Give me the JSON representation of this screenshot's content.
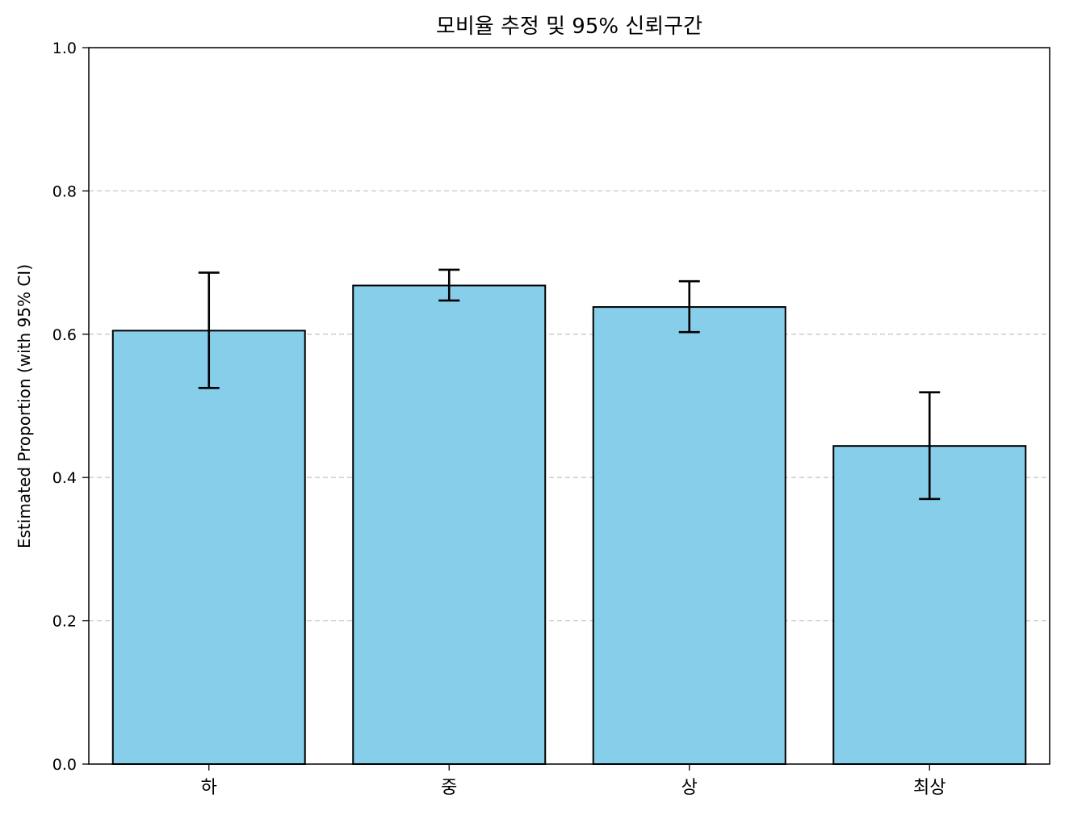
{
  "chart_data": {
    "type": "bar",
    "title": "모비율 추정 및 95% 신뢰구간",
    "xlabel": "",
    "ylabel": "Estimated Proportion (with 95% CI)",
    "categories": [
      "하",
      "중",
      "상",
      "최상"
    ],
    "values": [
      0.605,
      0.668,
      0.638,
      0.444
    ],
    "ci_lower": [
      0.525,
      0.647,
      0.603,
      0.37
    ],
    "ci_upper": [
      0.686,
      0.69,
      0.674,
      0.519
    ],
    "ylim": [
      0,
      1.0
    ],
    "yticks": [
      0.0,
      0.2,
      0.4,
      0.6,
      0.8,
      1.0
    ],
    "ytick_labels": [
      "0.0",
      "0.2",
      "0.4",
      "0.6",
      "0.8",
      "1.0"
    ],
    "grid": "y-dashed",
    "bar_color": "#87CEEB",
    "bar_edge_color": "#000000",
    "grid_color": "#c8c8c8"
  }
}
